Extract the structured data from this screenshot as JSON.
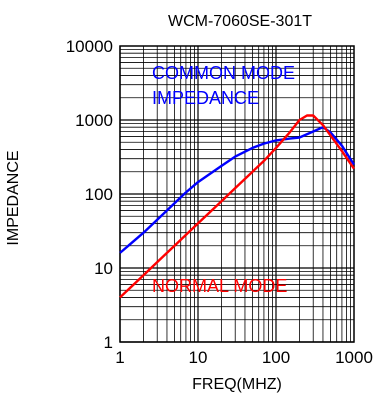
{
  "chart_data": {
    "type": "line",
    "title": "WCM-7060SE-301T",
    "xlabel": "FREQ(MHZ)",
    "ylabel": "IMPEDANCE",
    "xscale": "log",
    "yscale": "log",
    "xlim": [
      1,
      1000
    ],
    "ylim": [
      1,
      10000
    ],
    "grid": true,
    "x_ticks": [
      "1",
      "10",
      "100",
      "1000"
    ],
    "y_ticks": [
      "1",
      "10",
      "100",
      "1000",
      "10000"
    ],
    "series": [
      {
        "name": "COMMON MODE IMPEDANCE",
        "color": "#0000ff",
        "x": [
          1,
          2,
          3,
          5,
          7,
          10,
          20,
          30,
          50,
          70,
          100,
          150,
          200,
          300,
          400,
          500,
          700,
          1000
        ],
        "y": [
          16,
          30,
          45,
          75,
          105,
          145,
          240,
          320,
          420,
          480,
          530,
          560,
          580,
          700,
          800,
          680,
          450,
          250
        ]
      },
      {
        "name": "NORMAL MODE",
        "color": "#ff0000",
        "x": [
          1,
          2,
          3,
          5,
          7,
          10,
          20,
          30,
          50,
          70,
          100,
          150,
          200,
          250,
          300,
          400,
          500,
          700,
          1000
        ],
        "y": [
          4,
          8,
          12,
          20,
          28,
          40,
          80,
          120,
          200,
          280,
          420,
          680,
          1000,
          1150,
          1150,
          850,
          620,
          380,
          220
        ]
      }
    ],
    "annotations": [
      {
        "text": "COMMON MODE",
        "color": "#0000ff"
      },
      {
        "text": "IMPEDANCE",
        "color": "#0000ff"
      },
      {
        "text": "NORMAL MODE",
        "color": "#ff0000"
      }
    ]
  }
}
